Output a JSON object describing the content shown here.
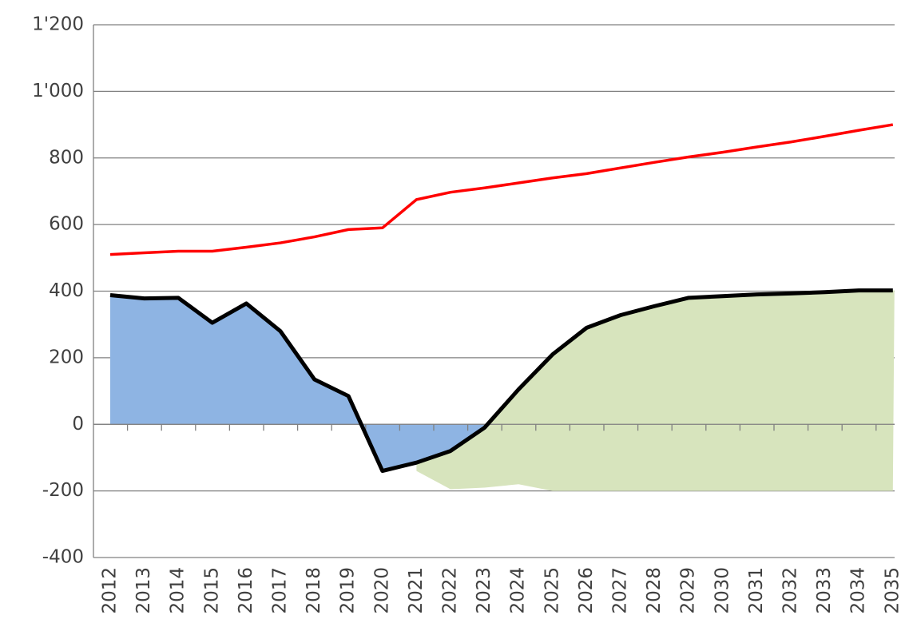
{
  "chart_data": {
    "type": "line",
    "categories": [
      "2012",
      "2013",
      "2014",
      "2015",
      "2016",
      "2017",
      "2018",
      "2019",
      "2020",
      "2021",
      "2022",
      "2023",
      "2024",
      "2025",
      "2026",
      "2027",
      "2028",
      "2029",
      "2030",
      "2031",
      "2032",
      "2033",
      "2034",
      "2035"
    ],
    "ylim": [
      -400,
      1200
    ],
    "yticks": [
      -400,
      -200,
      0,
      200,
      400,
      600,
      800,
      {
        "value": 1000,
        "label": "1'000"
      },
      {
        "value": 1200,
        "label": "1'200"
      }
    ],
    "grid": true,
    "areas": [
      {
        "color": "#8eb4e3",
        "values": [
          388,
          378,
          380,
          305,
          363,
          280,
          135,
          85,
          -140,
          -115,
          -80,
          -10,
          null,
          null,
          null,
          null,
          null,
          null,
          null,
          null,
          null,
          null,
          null,
          null
        ]
      },
      {
        "color": "#d7e4bd",
        "values": [
          null,
          null,
          null,
          null,
          null,
          null,
          null,
          null,
          null,
          -115,
          -80,
          -10,
          105,
          210,
          290,
          328,
          355,
          380,
          385,
          390,
          393,
          397,
          402,
          402
        ],
        "base": [
          null,
          null,
          null,
          null,
          null,
          null,
          null,
          null,
          null,
          -140,
          -195,
          -190,
          -180,
          -200,
          -200,
          -200,
          -200,
          -200,
          -200,
          -200,
          -200,
          -200,
          -200,
          -200
        ]
      }
    ],
    "series": [
      {
        "color": "#000000",
        "values": [
          388,
          378,
          380,
          305,
          363,
          280,
          135,
          85,
          -140,
          -115,
          -80,
          -10,
          105,
          210,
          290,
          328,
          355,
          380,
          385,
          390,
          393,
          397,
          402,
          402
        ]
      },
      {
        "color": "#ff0000",
        "values": [
          510,
          515,
          520,
          520,
          532,
          545,
          563,
          585,
          590,
          675,
          697,
          710,
          725,
          740,
          753,
          770,
          787,
          803,
          817,
          833,
          848,
          865,
          883,
          900
        ]
      }
    ]
  }
}
